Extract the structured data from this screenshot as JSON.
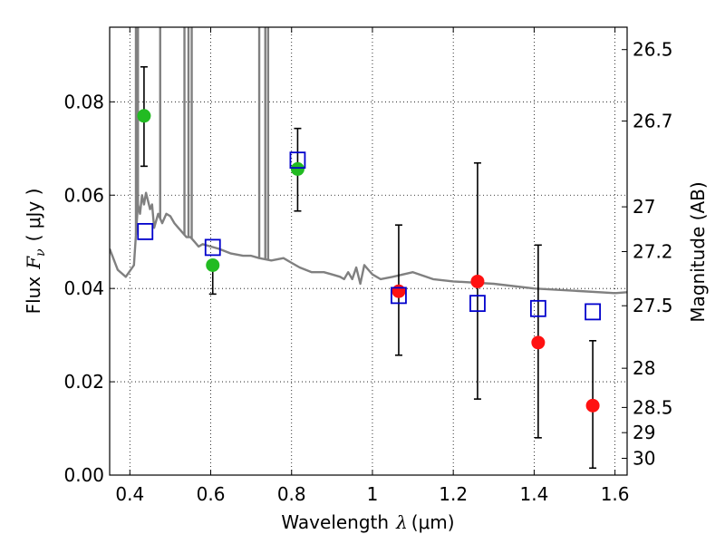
{
  "chart_data": {
    "type": "scatter",
    "xlabel_text": "Wavelength",
    "xlabel_math": "λ",
    "xlabel_unit": "(μm)",
    "ylabel_text": "Flux",
    "ylabel_math": "F",
    "ylabel_sub": "ν",
    "ylabel_unit": "( μJy )",
    "y2label": "Magnitude (AB)",
    "xlim": [
      0.35,
      1.63
    ],
    "ylim": [
      0.0,
      0.096
    ],
    "grid": true,
    "x_ticks": [
      0.4,
      0.6,
      0.8,
      1.0,
      1.2,
      1.4,
      1.6
    ],
    "x_tick_labels": [
      "0.4",
      "0.6",
      "0.8",
      "1",
      "1.2",
      "1.4",
      "1.6"
    ],
    "y_ticks": [
      0.0,
      0.02,
      0.04,
      0.06,
      0.08
    ],
    "y_tick_labels": [
      "0.00",
      "0.02",
      "0.04",
      "0.06",
      "0.08"
    ],
    "y2_ticks": [
      {
        "label": "26.5",
        "flux": 0.0912
      },
      {
        "label": "26.7",
        "flux": 0.0759
      },
      {
        "label": "27",
        "flux": 0.0575
      },
      {
        "label": "27.2",
        "flux": 0.0479
      },
      {
        "label": "27.5",
        "flux": 0.0363
      },
      {
        "label": "28",
        "flux": 0.0229
      },
      {
        "label": "28.5",
        "flux": 0.0145
      },
      {
        "label": "29",
        "flux": 0.0091
      },
      {
        "label": "30",
        "flux": 0.0036
      }
    ],
    "series": [
      {
        "marker": "circle",
        "color": "#22bb22",
        "x": [
          0.435,
          0.605,
          0.815
        ],
        "y": [
          0.077,
          0.045,
          0.0656
        ],
        "err_low": [
          0.0108,
          0.0062,
          0.009
        ],
        "err_high": [
          0.0105,
          0.0,
          0.0087
        ]
      },
      {
        "marker": "circle",
        "color": "#ff1111",
        "x": [
          1.065,
          1.26,
          1.41,
          1.545
        ],
        "y": [
          0.0394,
          0.0415,
          0.0284,
          0.0149
        ],
        "err_low": [
          0.0137,
          0.0252,
          0.0204,
          0.0134
        ],
        "err_high": [
          0.0142,
          0.0254,
          0.0209,
          0.0139
        ]
      },
      {
        "marker": "square",
        "color": "#0000cc",
        "x": [
          0.438,
          0.605,
          0.815,
          1.065,
          1.26,
          1.41,
          1.545
        ],
        "y": [
          0.0522,
          0.0488,
          0.0675,
          0.0385,
          0.0368,
          0.0357,
          0.035
        ]
      }
    ],
    "template_spectrum": {
      "color": "#808080",
      "x": [
        0.35,
        0.37,
        0.39,
        0.41,
        0.42,
        0.425,
        0.43,
        0.435,
        0.44,
        0.45,
        0.455,
        0.46,
        0.47,
        0.48,
        0.49,
        0.5,
        0.51,
        0.52,
        0.53,
        0.54,
        0.55,
        0.56,
        0.57,
        0.58,
        0.6,
        0.62,
        0.65,
        0.68,
        0.7,
        0.72,
        0.75,
        0.78,
        0.8,
        0.82,
        0.85,
        0.88,
        0.9,
        0.92,
        0.93,
        0.94,
        0.95,
        0.96,
        0.97,
        0.98,
        0.99,
        1.0,
        1.02,
        1.05,
        1.1,
        1.15,
        1.2,
        1.3,
        1.4,
        1.5,
        1.6,
        1.63
      ],
      "y": [
        0.0485,
        0.044,
        0.0425,
        0.045,
        0.058,
        0.056,
        0.06,
        0.058,
        0.0605,
        0.057,
        0.058,
        0.053,
        0.056,
        0.054,
        0.056,
        0.0555,
        0.054,
        0.053,
        0.052,
        0.051,
        0.051,
        0.05,
        0.049,
        0.0495,
        0.049,
        0.0485,
        0.0475,
        0.047,
        0.047,
        0.0465,
        0.046,
        0.0465,
        0.0455,
        0.0445,
        0.0435,
        0.0435,
        0.043,
        0.0425,
        0.042,
        0.0435,
        0.042,
        0.0445,
        0.041,
        0.045,
        0.044,
        0.043,
        0.042,
        0.0425,
        0.0435,
        0.042,
        0.0415,
        0.041,
        0.04,
        0.0395,
        0.039,
        0.0392
      ],
      "spikes": [
        {
          "x": 0.415,
          "top": 0.096
        },
        {
          "x": 0.42,
          "top": 0.096
        },
        {
          "x": 0.475,
          "top": 0.096
        },
        {
          "x": 0.535,
          "top": 0.096
        },
        {
          "x": 0.545,
          "top": 0.096
        },
        {
          "x": 0.553,
          "top": 0.096
        },
        {
          "x": 0.72,
          "top": 0.096
        },
        {
          "x": 0.735,
          "top": 0.096
        },
        {
          "x": 0.742,
          "top": 0.096
        }
      ]
    }
  }
}
